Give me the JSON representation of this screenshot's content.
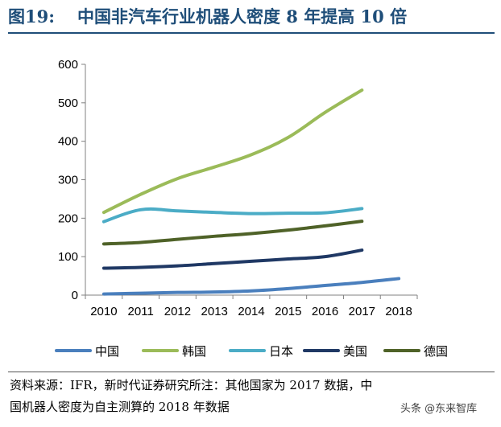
{
  "figure": {
    "label": "图19:",
    "title": "中国非汽车行业机器人密度 8 年提高 10 倍"
  },
  "chart_data": {
    "type": "line",
    "title": "",
    "xlabel": "",
    "ylabel": "",
    "categories": [
      "2010",
      "2011",
      "2012",
      "2013",
      "2014",
      "2015",
      "2016",
      "2017",
      "2018"
    ],
    "ylim": [
      0,
      600
    ],
    "yticks": [
      0,
      100,
      200,
      300,
      400,
      500,
      600
    ],
    "grid": false,
    "legend_position": "bottom",
    "series": [
      {
        "name": "中国",
        "color": "#4a7fbd",
        "values": [
          3,
          5,
          7,
          8,
          11,
          17,
          25,
          33,
          43
        ]
      },
      {
        "name": "韩国",
        "color": "#9bbb59",
        "values": [
          215,
          262,
          303,
          333,
          365,
          410,
          475,
          533,
          null
        ]
      },
      {
        "name": "日本",
        "color": "#4bacc6",
        "values": [
          191,
          222,
          219,
          215,
          212,
          213,
          214,
          225,
          null
        ]
      },
      {
        "name": "美国",
        "color": "#1f3864",
        "values": [
          70,
          72,
          76,
          82,
          88,
          94,
          100,
          117,
          null
        ]
      },
      {
        "name": "德国",
        "color": "#4f6228",
        "values": [
          133,
          137,
          145,
          153,
          160,
          169,
          180,
          192,
          null
        ]
      }
    ]
  },
  "source_note": {
    "line1": "资料来源：IFR，新时代证券研究所注：其他国家为 2017 数据，中",
    "line2": "国机器人密度为自主测算的 2018 年数据"
  },
  "watermark": "头条 @东来智库"
}
